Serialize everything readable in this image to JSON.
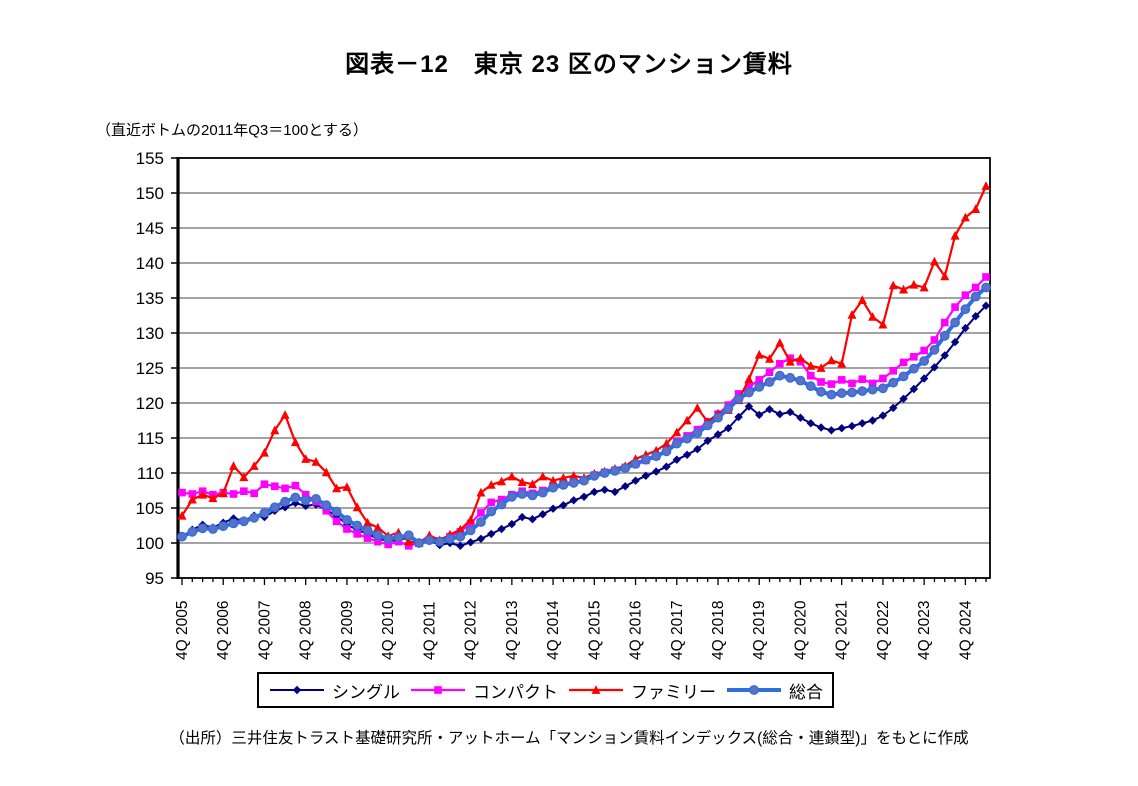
{
  "header": {
    "title": "図表－12　東京 23 区のマンション賃料",
    "axis_note": "（直近ボトムの2011年Q3＝100とする）"
  },
  "source": {
    "text": "（出所）三井住友トラスト基礎研究所・アットホーム「マンション賃料インデックス(総合・連鎖型)」をもとに作成"
  },
  "chart_data": {
    "type": "line",
    "title": "図表－12　東京 23 区のマンション賃料",
    "subtitle": "（直近ボトムの2011年Q3＝100とする）",
    "base_note": "2011Q3 = 100",
    "grid_color": "#A3A3A3",
    "y_axis": {
      "min": 95,
      "max": 155,
      "step": 5,
      "tick_labels": [
        "155",
        "150",
        "145",
        "140",
        "135",
        "130",
        "125",
        "120",
        "115",
        "110",
        "105",
        "100",
        "95"
      ]
    },
    "x_axis": {
      "unit": "quarter",
      "start": "2005Q4",
      "end": "2025Q2",
      "points": 79,
      "label_every_n_points": 4,
      "tick_labels": [
        "4Q 2005",
        "4Q 2006",
        "4Q 2007",
        "4Q 2008",
        "4Q 2009",
        "4Q 2010",
        "4Q 2011",
        "4Q 2012",
        "4Q 2013",
        "4Q 2014",
        "4Q 2015",
        "4Q 2016",
        "4Q 2017",
        "4Q 2018",
        "4Q 2019",
        "4Q 2020",
        "4Q 2021",
        "4Q 2022",
        "4Q 2023",
        "4Q 2024"
      ]
    },
    "legend": {
      "position": "bottom",
      "boxed": true
    },
    "series": [
      {
        "id": "single",
        "name": "シングル",
        "marker": "diamond",
        "color": "#000080",
        "line_width": 2,
        "values": [
          100.8,
          101.9,
          102.6,
          102.2,
          102.9,
          103.5,
          103.2,
          103.9,
          103.7,
          104.6,
          105.1,
          105.7,
          105.3,
          105.5,
          104.7,
          103.9,
          102.6,
          101.9,
          101.3,
          100.6,
          100.3,
          100.4,
          100.8,
          100.0,
          100.4,
          99.7,
          100.0,
          99.6,
          100.1,
          100.6,
          101.3,
          102.0,
          102.7,
          103.7,
          103.4,
          104.1,
          104.9,
          105.4,
          106.1,
          106.6,
          107.3,
          107.6,
          107.3,
          108.1,
          108.9,
          109.6,
          110.2,
          110.9,
          111.9,
          112.6,
          113.4,
          114.6,
          115.5,
          116.4,
          118.0,
          119.5,
          118.3,
          119.1,
          118.4,
          118.7,
          117.9,
          117.1,
          116.5,
          116.1,
          116.4,
          116.7,
          117.1,
          117.5,
          118.2,
          119.3,
          120.6,
          122.0,
          123.5,
          125.1,
          126.8,
          128.7,
          130.7,
          132.4,
          133.9
        ]
      },
      {
        "id": "compact",
        "name": "コンパクト",
        "marker": "square",
        "color": "#FF00FF",
        "line_width": 2.2,
        "values": [
          107.2,
          107.0,
          107.4,
          106.9,
          107.2,
          107.0,
          107.4,
          107.1,
          108.4,
          108.1,
          107.8,
          108.2,
          106.9,
          105.9,
          104.6,
          103.1,
          102.0,
          101.3,
          100.7,
          100.2,
          99.8,
          100.2,
          99.6,
          100.0,
          100.5,
          100.3,
          100.9,
          101.6,
          102.8,
          104.3,
          105.8,
          106.2,
          106.9,
          107.4,
          107.1,
          107.5,
          108.1,
          108.5,
          108.7,
          109.0,
          109.7,
          110.1,
          110.4,
          110.8,
          111.3,
          111.8,
          112.4,
          113.3,
          114.5,
          115.3,
          116.2,
          117.3,
          118.4,
          119.7,
          121.3,
          122.3,
          123.3,
          124.4,
          125.6,
          126.4,
          125.9,
          123.9,
          123.0,
          122.7,
          123.3,
          122.8,
          123.4,
          122.8,
          123.5,
          124.6,
          125.8,
          126.6,
          127.5,
          129.0,
          131.5,
          133.7,
          135.4,
          136.5,
          138.0
        ]
      },
      {
        "id": "family",
        "name": "ファミリー",
        "marker": "triangle",
        "color": "#FF0000",
        "line_width": 2.2,
        "values": [
          103.9,
          106.2,
          106.9,
          106.4,
          107.1,
          111.0,
          109.4,
          111.0,
          112.9,
          116.1,
          118.3,
          114.4,
          112.0,
          111.6,
          110.1,
          107.8,
          108.0,
          105.1,
          102.9,
          102.2,
          101.0,
          101.5,
          100.2,
          100.0,
          101.1,
          100.4,
          101.2,
          101.9,
          103.3,
          107.2,
          108.3,
          108.8,
          109.5,
          108.7,
          108.4,
          109.5,
          108.9,
          109.3,
          109.6,
          109.3,
          109.9,
          110.2,
          110.6,
          111.0,
          112.0,
          112.6,
          113.2,
          114.2,
          115.8,
          117.5,
          119.3,
          117.3,
          118.5,
          119.0,
          120.4,
          123.4,
          126.9,
          126.3,
          128.6,
          125.9,
          126.4,
          125.3,
          125.0,
          126.1,
          125.6,
          132.6,
          134.7,
          132.3,
          131.2,
          136.8,
          136.2,
          136.9,
          136.5,
          140.2,
          138.1,
          143.9,
          146.5,
          147.7,
          151.0
        ]
      },
      {
        "id": "composite",
        "name": "総合",
        "marker": "circle",
        "color": "#2E6FDF",
        "marker_fill": "#5F6FC4",
        "line_width": 4,
        "values": [
          100.9,
          101.6,
          102.1,
          102.0,
          102.4,
          102.8,
          103.1,
          103.6,
          104.3,
          105.1,
          105.9,
          106.5,
          106.1,
          106.3,
          105.4,
          104.5,
          103.3,
          102.5,
          101.8,
          101.1,
          100.6,
          100.8,
          101.1,
          100.0,
          100.4,
          100.2,
          100.6,
          100.9,
          101.8,
          103.0,
          104.5,
          105.5,
          106.6,
          107.0,
          106.8,
          107.2,
          107.9,
          108.3,
          108.6,
          108.9,
          109.6,
          110.0,
          110.3,
          110.7,
          111.3,
          111.9,
          112.4,
          113.1,
          114.2,
          114.9,
          115.7,
          116.8,
          117.9,
          119.2,
          120.6,
          121.5,
          122.3,
          123.0,
          123.9,
          123.6,
          123.2,
          122.4,
          121.6,
          121.2,
          121.4,
          121.5,
          121.7,
          121.9,
          122.1,
          122.9,
          123.8,
          124.9,
          126.0,
          127.6,
          129.6,
          131.5,
          133.4,
          135.2,
          136.5
        ]
      }
    ]
  }
}
